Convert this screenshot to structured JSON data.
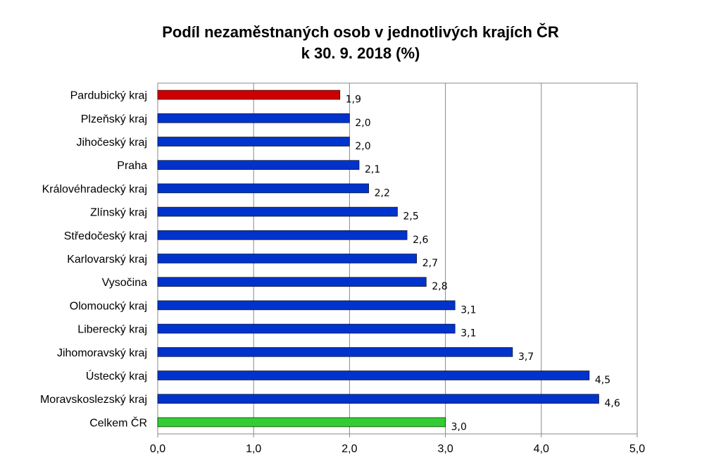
{
  "chart_data": {
    "type": "bar",
    "orientation": "horizontal",
    "title_line1": "Podíl nezaměstnaných osob v jednotlivých krajích ČR",
    "title_line2": "k 30. 9. 2018 (%)",
    "categories": [
      "Pardubický kraj",
      "Plzeňský kraj",
      "Jihočeský kraj",
      "Praha",
      "Královéhradecký kraj",
      "Zlínský kraj",
      "Středočeský kraj",
      "Karlovarský kraj",
      "Vysočina",
      "Olomoucký kraj",
      "Liberecký kraj",
      "Jihomoravský kraj",
      "Ústecký kraj",
      "Moravskoslezský kraj",
      "Celkem ČR"
    ],
    "values": [
      1.9,
      2.0,
      2.0,
      2.1,
      2.2,
      2.5,
      2.6,
      2.7,
      2.8,
      3.1,
      3.1,
      3.7,
      4.5,
      4.6,
      3.0
    ],
    "value_labels": [
      "1,9",
      "2,0",
      "2,0",
      "2,1",
      "2,2",
      "2,5",
      "2,6",
      "2,7",
      "2,8",
      "3,1",
      "3,1",
      "3,7",
      "4,5",
      "4,6",
      "3,0"
    ],
    "bar_colors": [
      "#cc0000",
      "#0033cc",
      "#0033cc",
      "#0033cc",
      "#0033cc",
      "#0033cc",
      "#0033cc",
      "#0033cc",
      "#0033cc",
      "#0033cc",
      "#0033cc",
      "#0033cc",
      "#0033cc",
      "#0033cc",
      "#33cc33"
    ],
    "xlim": [
      0,
      5
    ],
    "x_ticks": [
      0,
      1,
      2,
      3,
      4,
      5
    ],
    "x_tick_labels": [
      "0,0",
      "1,0",
      "2,0",
      "3,0",
      "4,0",
      "5,0"
    ],
    "xlabel": "",
    "ylabel": "",
    "grid": true,
    "legend": "none"
  }
}
